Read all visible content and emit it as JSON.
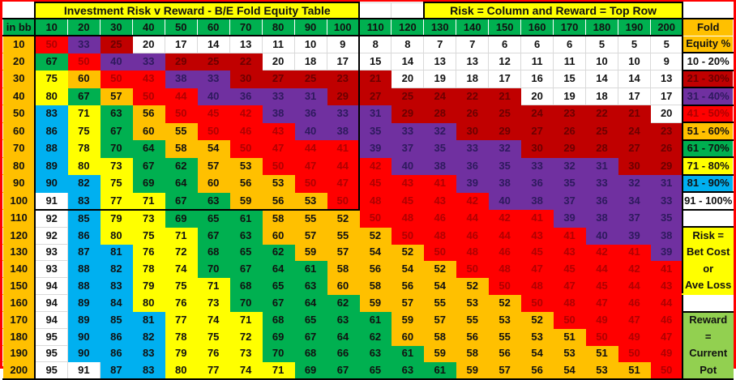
{
  "title_left": "Investment Risk v Reward - B/E Fold Equity Table",
  "title_right": "Risk = Column and Reward = Top Row",
  "corner_label": "in bb",
  "columns": [
    10,
    20,
    30,
    40,
    50,
    60,
    70,
    80,
    90,
    100,
    110,
    120,
    130,
    140,
    150,
    160,
    170,
    180,
    190,
    200
  ],
  "rows": [
    {
      "label": 10,
      "values": [
        50,
        33,
        25,
        20,
        17,
        14,
        13,
        11,
        10,
        9,
        8,
        8,
        7,
        7,
        6,
        6,
        6,
        5,
        5,
        5
      ]
    },
    {
      "label": 20,
      "values": [
        67,
        50,
        40,
        33,
        29,
        25,
        22,
        20,
        18,
        17,
        15,
        14,
        13,
        13,
        12,
        11,
        11,
        10,
        10,
        9
      ]
    },
    {
      "label": 30,
      "values": [
        75,
        60,
        50,
        43,
        38,
        33,
        30,
        27,
        25,
        23,
        21,
        20,
        19,
        18,
        17,
        16,
        15,
        14,
        14,
        13
      ]
    },
    {
      "label": 40,
      "values": [
        80,
        67,
        57,
        50,
        44,
        40,
        36,
        33,
        31,
        29,
        27,
        25,
        24,
        22,
        21,
        20,
        19,
        18,
        17,
        17
      ]
    },
    {
      "label": 50,
      "values": [
        83,
        71,
        63,
        56,
        50,
        45,
        42,
        38,
        36,
        33,
        31,
        29,
        28,
        26,
        25,
        24,
        23,
        22,
        21,
        20
      ]
    },
    {
      "label": 60,
      "values": [
        86,
        75,
        67,
        60,
        55,
        50,
        46,
        43,
        40,
        38,
        35,
        33,
        32,
        30,
        29,
        27,
        26,
        25,
        24,
        23
      ]
    },
    {
      "label": 70,
      "values": [
        88,
        78,
        70,
        64,
        58,
        54,
        50,
        47,
        44,
        41,
        39,
        37,
        35,
        33,
        32,
        30,
        29,
        28,
        27,
        26
      ]
    },
    {
      "label": 80,
      "values": [
        89,
        80,
        73,
        67,
        62,
        57,
        53,
        50,
        47,
        44,
        42,
        40,
        38,
        36,
        35,
        33,
        32,
        31,
        30,
        29
      ]
    },
    {
      "label": 90,
      "values": [
        90,
        82,
        75,
        69,
        64,
        60,
        56,
        53,
        50,
        47,
        45,
        43,
        41,
        39,
        38,
        36,
        35,
        33,
        32,
        31
      ]
    },
    {
      "label": 100,
      "values": [
        91,
        83,
        77,
        71,
        67,
        63,
        59,
        56,
        53,
        50,
        48,
        45,
        43,
        42,
        40,
        38,
        37,
        36,
        34,
        33
      ]
    },
    {
      "label": 110,
      "values": [
        92,
        85,
        79,
        73,
        69,
        65,
        61,
        58,
        55,
        52,
        50,
        48,
        46,
        44,
        42,
        41,
        39,
        38,
        37,
        35
      ]
    },
    {
      "label": 120,
      "values": [
        92,
        86,
        80,
        75,
        71,
        67,
        63,
        60,
        57,
        55,
        52,
        50,
        48,
        46,
        44,
        43,
        41,
        40,
        39,
        38
      ]
    },
    {
      "label": 130,
      "values": [
        93,
        87,
        81,
        76,
        72,
        68,
        65,
        62,
        59,
        57,
        54,
        52,
        50,
        48,
        46,
        45,
        43,
        42,
        41,
        39
      ]
    },
    {
      "label": 140,
      "values": [
        93,
        88,
        82,
        78,
        74,
        70,
        67,
        64,
        61,
        58,
        56,
        54,
        52,
        50,
        48,
        47,
        45,
        44,
        42,
        41
      ]
    },
    {
      "label": 150,
      "values": [
        94,
        88,
        83,
        79,
        75,
        71,
        68,
        65,
        63,
        60,
        58,
        56,
        54,
        52,
        50,
        48,
        47,
        45,
        44,
        43
      ]
    },
    {
      "label": 160,
      "values": [
        94,
        89,
        84,
        80,
        76,
        73,
        70,
        67,
        64,
        62,
        59,
        57,
        55,
        53,
        52,
        50,
        48,
        47,
        46,
        44
      ]
    },
    {
      "label": 170,
      "values": [
        94,
        89,
        85,
        81,
        77,
        74,
        71,
        68,
        65,
        63,
        61,
        59,
        57,
        55,
        53,
        52,
        50,
        49,
        47,
        46
      ]
    },
    {
      "label": 180,
      "values": [
        95,
        90,
        86,
        82,
        78,
        75,
        72,
        69,
        67,
        64,
        62,
        60,
        58,
        56,
        55,
        53,
        51,
        50,
        49,
        47
      ]
    },
    {
      "label": 190,
      "values": [
        95,
        90,
        86,
        83,
        79,
        76,
        73,
        70,
        68,
        66,
        63,
        61,
        59,
        58,
        56,
        54,
        53,
        51,
        50,
        49
      ]
    },
    {
      "label": 200,
      "values": [
        95,
        91,
        87,
        83,
        80,
        77,
        74,
        71,
        69,
        67,
        65,
        63,
        61,
        59,
        57,
        56,
        54,
        53,
        51,
        50
      ]
    }
  ],
  "bands": [
    {
      "min": 0,
      "max": 20,
      "fill": "#ffffff",
      "text": "#111111",
      "label": "10 - 20%"
    },
    {
      "min": 21,
      "max": 30,
      "fill": "#c00000",
      "text": "#6b0000",
      "label": "21 - 30%"
    },
    {
      "min": 31,
      "max": 40,
      "fill": "#7030a0",
      "text": "#2e1a5e",
      "label": "31 - 40%"
    },
    {
      "min": 41,
      "max": 50,
      "fill": "#ff0000",
      "text": "#b00000",
      "label": "41 - 50%"
    },
    {
      "min": 51,
      "max": 60,
      "fill": "#ffc000",
      "text": "#111111",
      "label": "51 - 60%"
    },
    {
      "min": 61,
      "max": 70,
      "fill": "#00b050",
      "text": "#111111",
      "label": "61 - 70%"
    },
    {
      "min": 71,
      "max": 80,
      "fill": "#ffff00",
      "text": "#111111",
      "label": "71 - 80%"
    },
    {
      "min": 81,
      "max": 90,
      "fill": "#00b0f0",
      "text": "#111111",
      "label": "81 - 90%"
    },
    {
      "min": 91,
      "max": 100,
      "fill": "#ffffff",
      "text": "#111111",
      "label": "91 - 100%"
    }
  ],
  "legend": {
    "title_lines": [
      "Fold",
      "Equity %"
    ],
    "title_fill": "#ffc000",
    "risk_lines": [
      "Risk =",
      "Bet Cost",
      "or",
      "Ave Loss"
    ],
    "risk_fill": "#ffff00",
    "reward_lines": [
      "Reward",
      "=",
      "Current",
      "Pot"
    ],
    "reward_fill": "#92d050"
  },
  "colors": {
    "border": "#ff0000",
    "title_fill": "#ffff00",
    "header_fill": "#00b050",
    "row_label_fill": "#ffc000",
    "corner_fill": "#00b0f0"
  }
}
